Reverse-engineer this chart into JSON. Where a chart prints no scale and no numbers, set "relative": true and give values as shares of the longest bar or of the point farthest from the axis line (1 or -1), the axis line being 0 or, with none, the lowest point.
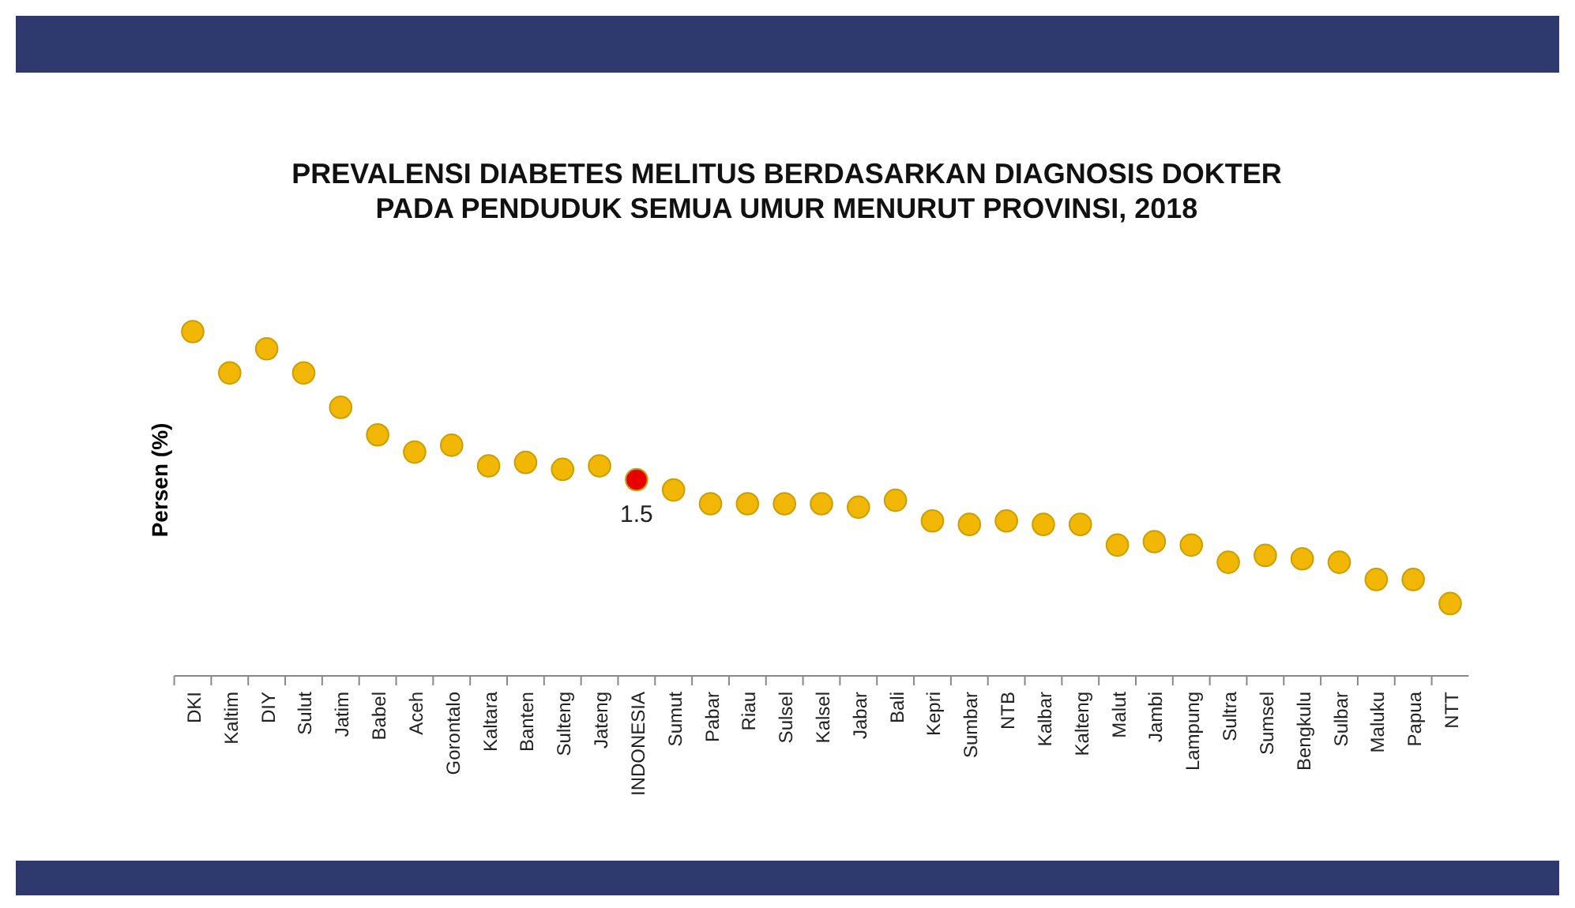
{
  "chart_data": {
    "type": "scatter",
    "relative": true,
    "title": "PREVALENSI DIABETES MELITUS BERDASARKAN DIAGNOSIS DOKTER PADA PENDUDUK SEMUA UMUR MENURUT PROVINSI, 2018",
    "ylabel": "Persen (%)",
    "marker": "circle",
    "tick_labels": "x",
    "categories": [
      "DKI",
      "Kaltim",
      "DIY",
      "Sulut",
      "Jatim",
      "Babel",
      "Aceh",
      "Gorontalo",
      "Kaltara",
      "Banten",
      "Sulteng",
      "Jateng",
      "INDONESIA",
      "Sumut",
      "Pabar",
      "Riau",
      "Sulsel",
      "Kalsel",
      "Jabar",
      "Bali",
      "Kepri",
      "Sumbar",
      "NTB",
      "Kalbar",
      "Kalteng",
      "Malut",
      "Jambi",
      "Lampung",
      "Sultra",
      "Sumsel",
      "Bengkulu",
      "Sulbar",
      "Maluku",
      "Papua",
      "NTT"
    ],
    "values": [
      1,
      0.88,
      0.95,
      0.88,
      0.78,
      0.7,
      0.65,
      0.67,
      0.61,
      0.62,
      0.6,
      0.61,
      0.57,
      0.54,
      0.5,
      0.5,
      0.5,
      0.5,
      0.49,
      0.51,
      0.45,
      0.44,
      0.45,
      0.44,
      0.44,
      0.38,
      0.39,
      0.38,
      0.33,
      0.35,
      0.34,
      0.33,
      0.28,
      0.28,
      0.21
    ],
    "colors": [
      "#f2b705",
      "#f2b705",
      "#f2b705",
      "#f2b705",
      "#f2b705",
      "#f2b705",
      "#f2b705",
      "#f2b705",
      "#f2b705",
      "#f2b705",
      "#f2b705",
      "#f2b705",
      "#e60000",
      "#f2b705",
      "#f2b705",
      "#f2b705",
      "#f2b705",
      "#f2b705",
      "#f2b705",
      "#f2b705",
      "#f2b705",
      "#f2b705",
      "#f2b705",
      "#f2b705",
      "#f2b705",
      "#f2b705",
      "#f2b705",
      "#f2b705",
      "#f2b705",
      "#f2b705",
      "#f2b705",
      "#f2b705",
      "#f2b705",
      "#f2b705",
      "#f2b705"
    ],
    "annotations": [
      {
        "text": "1.5",
        "x": "INDONESIA",
        "y": 0.57
      }
    ]
  }
}
